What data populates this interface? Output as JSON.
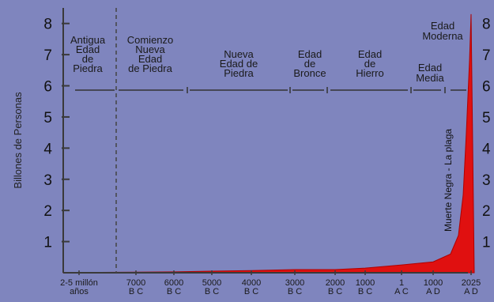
{
  "chart_data": {
    "type": "area",
    "title": "",
    "ylabel": "Billones de Personas",
    "xlabel": "",
    "ylim": [
      0,
      8.5
    ],
    "y_ticks": [
      "1",
      "2",
      "3",
      "4",
      "5",
      "6",
      "7",
      "8"
    ],
    "x_ticks": [
      [
        "2-5 millón",
        "años"
      ],
      [
        "7000",
        "B C"
      ],
      [
        "6000",
        "B C"
      ],
      [
        "5000",
        "B C"
      ],
      [
        "4000",
        "B C"
      ],
      [
        "3000",
        "B C"
      ],
      [
        "2000",
        "B C"
      ],
      [
        "1000",
        "B C"
      ],
      [
        "1",
        "A C"
      ],
      [
        "1000",
        "A D"
      ],
      [
        "2025",
        "A D"
      ]
    ],
    "eras": [
      {
        "lines": [
          "Antigua",
          "Edad",
          "de",
          "Piedra"
        ]
      },
      {
        "lines": [
          "Comienzo",
          "Nueva",
          "Edad",
          "de Piedra"
        ]
      },
      {
        "lines": [
          "Nueva",
          "Edad  de",
          "Piedra"
        ]
      },
      {
        "lines": [
          "Edad",
          "de",
          "Bronce"
        ]
      },
      {
        "lines": [
          "Edad",
          "de",
          "Hierro"
        ]
      },
      {
        "lines": [
          "Edad",
          "Media"
        ]
      },
      {
        "lines": [
          "Edad",
          "Moderna"
        ]
      }
    ],
    "annotation": "Muerte Negra - La plaga",
    "series": [
      {
        "x": [
          "2-5 millón años",
          "7000 B C",
          "6000 B C",
          "5000 B C",
          "4000 B C",
          "3000 B C",
          "2000 B C",
          "1000 B C",
          "1 A C",
          "1000 A D",
          "2025 A D"
        ],
        "values": [
          0.01,
          0.02,
          0.03,
          0.05,
          0.07,
          0.1,
          0.1,
          0.15,
          0.25,
          0.35,
          8.3
        ]
      }
    ],
    "colors": {
      "fill": "#e01010",
      "background": "#7f85be",
      "axis": "#3a3a3a"
    },
    "grid": false
  }
}
